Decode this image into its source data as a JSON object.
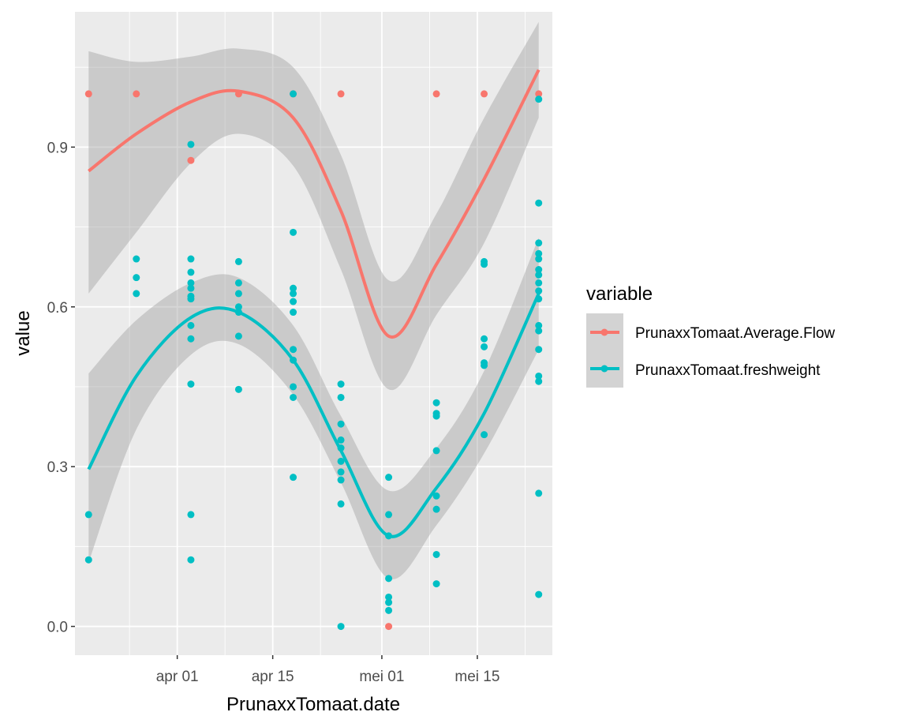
{
  "chart_data": {
    "type": "scatter",
    "xlabel": "PrunaxxTomaat.date",
    "ylabel": "value",
    "x_range": [
      "2024-03-17",
      "2024-05-26"
    ],
    "y_range": [
      -0.054,
      1.154
    ],
    "x_ticks": [
      {
        "date": "2024-04-01",
        "label": "apr 01"
      },
      {
        "date": "2024-04-15",
        "label": "apr 15"
      },
      {
        "date": "2024-05-01",
        "label": "mei 01"
      },
      {
        "date": "2024-05-15",
        "label": "mei 15"
      }
    ],
    "y_ticks": [
      {
        "value": 0.0,
        "label": "0.0"
      },
      {
        "value": 0.3,
        "label": "0.3"
      },
      {
        "value": 0.6,
        "label": "0.6"
      },
      {
        "value": 0.9,
        "label": "0.9"
      }
    ],
    "grid": true,
    "legend": {
      "title": "variable",
      "position": "right"
    },
    "series": [
      {
        "name": "PrunaxxTomaat.Average.Flow",
        "color": "#F8766D",
        "points": [
          {
            "x": "2024-03-19",
            "y": 1.0
          },
          {
            "x": "2024-03-26",
            "y": 1.0
          },
          {
            "x": "2024-04-03",
            "y": 0.875
          },
          {
            "x": "2024-04-10",
            "y": 1.0
          },
          {
            "x": "2024-04-18",
            "y": 1.0
          },
          {
            "x": "2024-04-25",
            "y": 1.0
          },
          {
            "x": "2024-05-02",
            "y": 0.0
          },
          {
            "x": "2024-05-09",
            "y": 1.0
          },
          {
            "x": "2024-05-16",
            "y": 1.0
          },
          {
            "x": "2024-05-24",
            "y": 1.0
          }
        ],
        "smooth": [
          {
            "x": "2024-03-19",
            "y": 0.855,
            "lo": 0.625,
            "hi": 1.08
          },
          {
            "x": "2024-03-26",
            "y": 0.925,
            "lo": 0.74,
            "hi": 1.06
          },
          {
            "x": "2024-04-03",
            "y": 0.985,
            "lo": 0.87,
            "hi": 1.07
          },
          {
            "x": "2024-04-10",
            "y": 1.005,
            "lo": 0.925,
            "hi": 1.085
          },
          {
            "x": "2024-04-18",
            "y": 0.955,
            "lo": 0.865,
            "hi": 1.05
          },
          {
            "x": "2024-04-25",
            "y": 0.78,
            "lo": 0.67,
            "hi": 0.885
          },
          {
            "x": "2024-05-02",
            "y": 0.545,
            "lo": 0.445,
            "hi": 0.65
          },
          {
            "x": "2024-05-09",
            "y": 0.68,
            "lo": 0.585,
            "hi": 0.775
          },
          {
            "x": "2024-05-16",
            "y": 0.84,
            "lo": 0.72,
            "hi": 0.955
          },
          {
            "x": "2024-05-24",
            "y": 1.045,
            "lo": 0.955,
            "hi": 1.135
          }
        ]
      },
      {
        "name": "PrunaxxTomaat.freshweight",
        "color": "#00BFC4",
        "points": [
          {
            "x": "2024-03-19",
            "y": 0.21
          },
          {
            "x": "2024-03-19",
            "y": 0.125
          },
          {
            "x": "2024-03-26",
            "y": 0.69
          },
          {
            "x": "2024-03-26",
            "y": 0.655
          },
          {
            "x": "2024-03-26",
            "y": 0.625
          },
          {
            "x": "2024-04-03",
            "y": 0.905
          },
          {
            "x": "2024-04-03",
            "y": 0.69
          },
          {
            "x": "2024-04-03",
            "y": 0.665
          },
          {
            "x": "2024-04-03",
            "y": 0.645
          },
          {
            "x": "2024-04-03",
            "y": 0.635
          },
          {
            "x": "2024-04-03",
            "y": 0.62
          },
          {
            "x": "2024-04-03",
            "y": 0.615
          },
          {
            "x": "2024-04-03",
            "y": 0.565
          },
          {
            "x": "2024-04-03",
            "y": 0.54
          },
          {
            "x": "2024-04-03",
            "y": 0.455
          },
          {
            "x": "2024-04-03",
            "y": 0.21
          },
          {
            "x": "2024-04-03",
            "y": 0.125
          },
          {
            "x": "2024-04-10",
            "y": 0.685
          },
          {
            "x": "2024-04-10",
            "y": 0.645
          },
          {
            "x": "2024-04-10",
            "y": 0.625
          },
          {
            "x": "2024-04-10",
            "y": 0.6
          },
          {
            "x": "2024-04-10",
            "y": 0.59
          },
          {
            "x": "2024-04-10",
            "y": 0.545
          },
          {
            "x": "2024-04-10",
            "y": 0.445
          },
          {
            "x": "2024-04-18",
            "y": 1.0
          },
          {
            "x": "2024-04-18",
            "y": 0.74
          },
          {
            "x": "2024-04-18",
            "y": 0.635
          },
          {
            "x": "2024-04-18",
            "y": 0.625
          },
          {
            "x": "2024-04-18",
            "y": 0.61
          },
          {
            "x": "2024-04-18",
            "y": 0.59
          },
          {
            "x": "2024-04-18",
            "y": 0.52
          },
          {
            "x": "2024-04-18",
            "y": 0.5
          },
          {
            "x": "2024-04-18",
            "y": 0.45
          },
          {
            "x": "2024-04-18",
            "y": 0.43
          },
          {
            "x": "2024-04-18",
            "y": 0.28
          },
          {
            "x": "2024-04-25",
            "y": 0.455
          },
          {
            "x": "2024-04-25",
            "y": 0.43
          },
          {
            "x": "2024-04-25",
            "y": 0.38
          },
          {
            "x": "2024-04-25",
            "y": 0.35
          },
          {
            "x": "2024-04-25",
            "y": 0.335
          },
          {
            "x": "2024-04-25",
            "y": 0.31
          },
          {
            "x": "2024-04-25",
            "y": 0.29
          },
          {
            "x": "2024-04-25",
            "y": 0.275
          },
          {
            "x": "2024-04-25",
            "y": 0.23
          },
          {
            "x": "2024-04-25",
            "y": 0.0
          },
          {
            "x": "2024-05-02",
            "y": 0.28
          },
          {
            "x": "2024-05-02",
            "y": 0.21
          },
          {
            "x": "2024-05-02",
            "y": 0.17
          },
          {
            "x": "2024-05-02",
            "y": 0.09
          },
          {
            "x": "2024-05-02",
            "y": 0.055
          },
          {
            "x": "2024-05-02",
            "y": 0.045
          },
          {
            "x": "2024-05-02",
            "y": 0.03
          },
          {
            "x": "2024-05-09",
            "y": 0.42
          },
          {
            "x": "2024-05-09",
            "y": 0.4
          },
          {
            "x": "2024-05-09",
            "y": 0.395
          },
          {
            "x": "2024-05-09",
            "y": 0.33
          },
          {
            "x": "2024-05-09",
            "y": 0.245
          },
          {
            "x": "2024-05-09",
            "y": 0.22
          },
          {
            "x": "2024-05-09",
            "y": 0.135
          },
          {
            "x": "2024-05-09",
            "y": 0.08
          },
          {
            "x": "2024-05-16",
            "y": 0.685
          },
          {
            "x": "2024-05-16",
            "y": 0.68
          },
          {
            "x": "2024-05-16",
            "y": 0.54
          },
          {
            "x": "2024-05-16",
            "y": 0.525
          },
          {
            "x": "2024-05-16",
            "y": 0.495
          },
          {
            "x": "2024-05-16",
            "y": 0.49
          },
          {
            "x": "2024-05-16",
            "y": 0.36
          },
          {
            "x": "2024-05-24",
            "y": 0.99
          },
          {
            "x": "2024-05-24",
            "y": 0.795
          },
          {
            "x": "2024-05-24",
            "y": 0.72
          },
          {
            "x": "2024-05-24",
            "y": 0.7
          },
          {
            "x": "2024-05-24",
            "y": 0.69
          },
          {
            "x": "2024-05-24",
            "y": 0.67
          },
          {
            "x": "2024-05-24",
            "y": 0.66
          },
          {
            "x": "2024-05-24",
            "y": 0.645
          },
          {
            "x": "2024-05-24",
            "y": 0.63
          },
          {
            "x": "2024-05-24",
            "y": 0.615
          },
          {
            "x": "2024-05-24",
            "y": 0.565
          },
          {
            "x": "2024-05-24",
            "y": 0.555
          },
          {
            "x": "2024-05-24",
            "y": 0.52
          },
          {
            "x": "2024-05-24",
            "y": 0.47
          },
          {
            "x": "2024-05-24",
            "y": 0.46
          },
          {
            "x": "2024-05-24",
            "y": 0.25
          },
          {
            "x": "2024-05-24",
            "y": 0.06
          }
        ],
        "smooth": [
          {
            "x": "2024-03-19",
            "y": 0.295,
            "lo": 0.12,
            "hi": 0.475
          },
          {
            "x": "2024-03-26",
            "y": 0.47,
            "lo": 0.37,
            "hi": 0.575
          },
          {
            "x": "2024-04-03",
            "y": 0.58,
            "lo": 0.51,
            "hi": 0.645
          },
          {
            "x": "2024-04-10",
            "y": 0.59,
            "lo": 0.53,
            "hi": 0.655
          },
          {
            "x": "2024-04-18",
            "y": 0.5,
            "lo": 0.435,
            "hi": 0.565
          },
          {
            "x": "2024-04-25",
            "y": 0.33,
            "lo": 0.27,
            "hi": 0.395
          },
          {
            "x": "2024-05-02",
            "y": 0.17,
            "lo": 0.09,
            "hi": 0.255
          },
          {
            "x": "2024-05-09",
            "y": 0.26,
            "lo": 0.19,
            "hi": 0.335
          },
          {
            "x": "2024-05-16",
            "y": 0.4,
            "lo": 0.325,
            "hi": 0.48
          },
          {
            "x": "2024-05-24",
            "y": 0.625,
            "lo": 0.52,
            "hi": 0.73
          }
        ]
      }
    ]
  }
}
